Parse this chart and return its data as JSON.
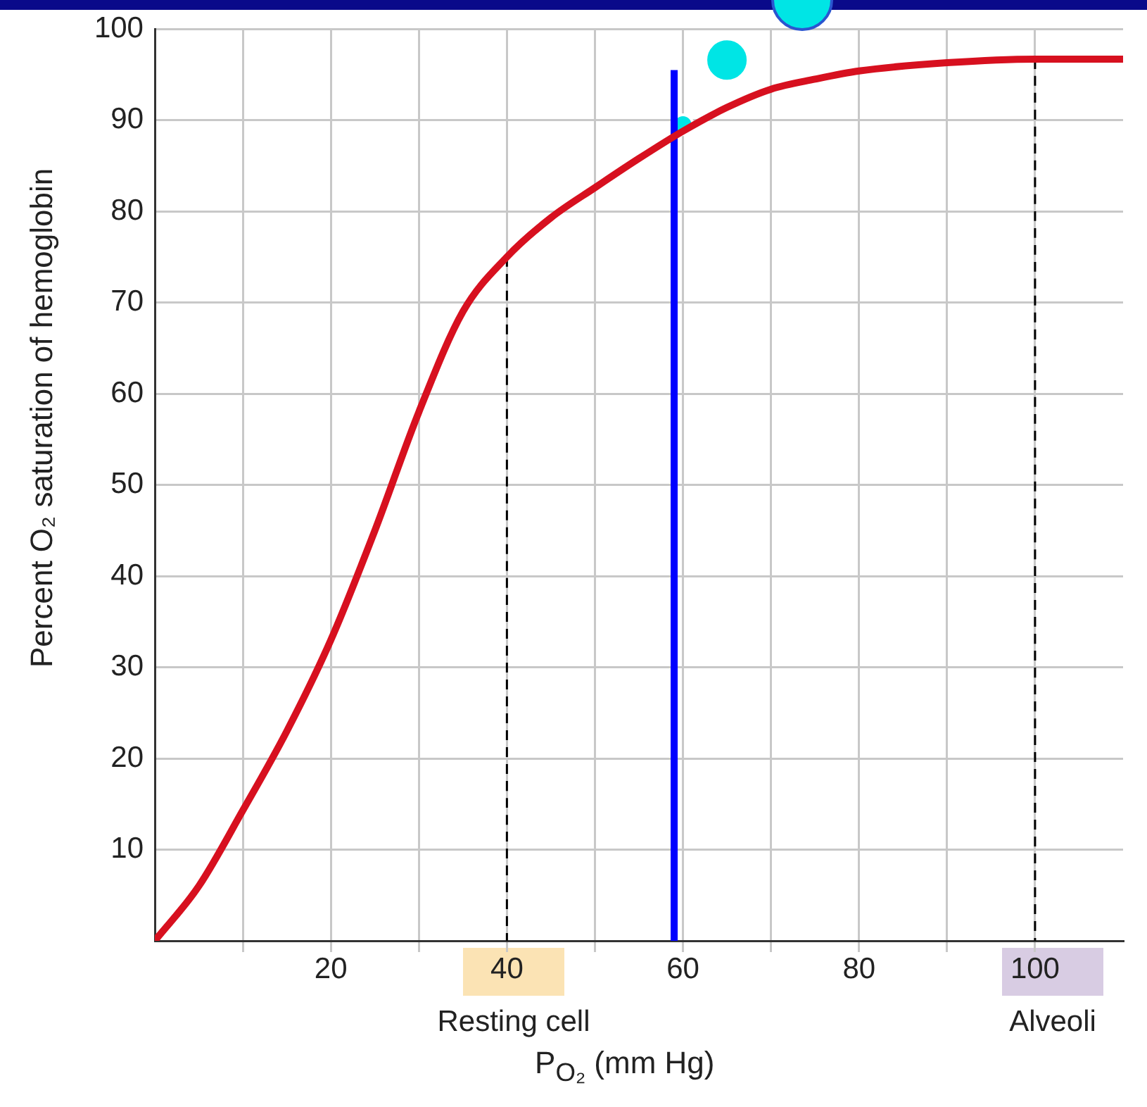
{
  "chart_data": {
    "type": "line",
    "xlabel": "P$_{O₂}$ (mm Hg)",
    "ylabel": "Percent O₂ saturation of hemoglobin",
    "xlim": [
      0,
      110
    ],
    "ylim": [
      0,
      100
    ],
    "xticks": [
      {
        "value": 10,
        "label": null
      },
      20,
      {
        "value": 30,
        "label": null
      },
      40,
      {
        "value": 50,
        "label": null
      },
      60,
      {
        "value": 70,
        "label": null
      },
      80,
      {
        "value": 90,
        "label": null
      },
      100
    ],
    "yticks": [
      10,
      20,
      30,
      40,
      50,
      60,
      70,
      80,
      90,
      100
    ],
    "grid": true,
    "legend": false,
    "marker": "none",
    "series": [
      {
        "color": "#d7101f",
        "x": [
          0,
          5,
          10,
          15,
          20,
          25,
          30,
          35,
          40,
          45,
          50,
          55,
          60,
          65,
          70,
          75,
          80,
          90,
          100,
          110
        ],
        "values": [
          0,
          6,
          14.3,
          23,
          33,
          45,
          58,
          69,
          75,
          79.3,
          82.6,
          85.8,
          88.8,
          91.4,
          93.4,
          94.5,
          95.4,
          96.3,
          96.7,
          96.7
        ]
      },
      {
        "color": "#0000ff",
        "x": [
          59,
          59
        ],
        "values": [
          0,
          95.5
        ]
      },
      {
        "color": "#000000",
        "line_style": "dashed",
        "x": [
          40,
          40
        ],
        "values": [
          75,
          0
        ]
      },
      {
        "color": "#000000",
        "line_style": "dashed",
        "x": [
          100,
          100
        ],
        "values": [
          96.7,
          0
        ]
      },
      {
        "type": "bubble",
        "marker": "circle",
        "color": "#00e5e5",
        "x": [
          60,
          65
        ],
        "values": [
          89.5,
          96.6
        ],
        "sizes": [
          0.22,
          1
        ]
      }
    ],
    "annotations": [
      "Resting cell",
      "Alveoli"
    ]
  }
}
